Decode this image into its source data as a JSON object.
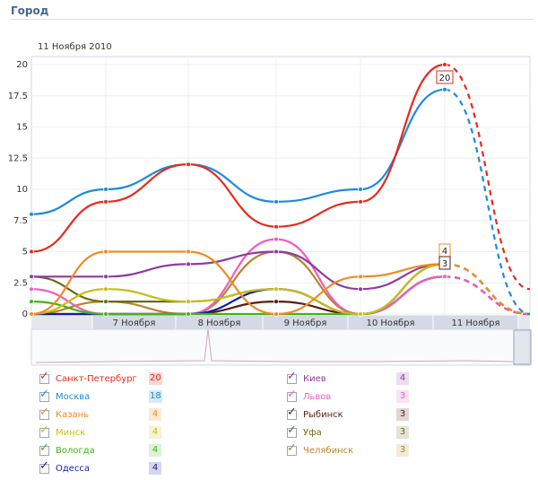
{
  "header": {
    "title": "Город"
  },
  "chart_data": {
    "type": "line",
    "date_label": "11 Ноября 2010",
    "ylim": [
      0,
      20
    ],
    "yticks": [
      "0",
      "2.5",
      "5",
      "7.5",
      "10",
      "12.5",
      "15",
      "17.5",
      "20"
    ],
    "xticks": [
      "7 Ноября",
      "8 Ноября",
      "9 Ноября",
      "10 Ноября",
      "11 Ноября"
    ],
    "series": [
      {
        "name": "Санкт-Петербург",
        "color": "#e8291c",
        "count": "20",
        "values": [
          5,
          9,
          12,
          7,
          9,
          20,
          2
        ]
      },
      {
        "name": "Москва",
        "color": "#1c8ae0",
        "count": "18",
        "values": [
          8,
          10,
          12,
          9,
          10,
          18,
          0
        ]
      },
      {
        "name": "Казань",
        "color": "#f08a24",
        "count": "4",
        "values": [
          0,
          5,
          5,
          0,
          3,
          4,
          0
        ]
      },
      {
        "name": "Минск",
        "color": "#c7bf16",
        "count": "4",
        "values": [
          0,
          2,
          1,
          2,
          0,
          4,
          0
        ]
      },
      {
        "name": "Вологда",
        "color": "#3fb517",
        "count": "4",
        "values": [
          1,
          0,
          0,
          0,
          0,
          4,
          0
        ]
      },
      {
        "name": "Одесса",
        "color": "#101ca1",
        "count": "4",
        "values": [
          0,
          0,
          0,
          2,
          0,
          4,
          0
        ]
      },
      {
        "name": "Киев",
        "color": "#8e3ba0",
        "count": "4",
        "values": [
          3,
          3,
          4,
          5,
          2,
          4,
          0
        ]
      },
      {
        "name": "Львов",
        "color": "#f05cbe",
        "count": "3",
        "values": [
          2,
          0,
          0,
          6,
          0,
          3,
          0
        ]
      },
      {
        "name": "Рыбинск",
        "color": "#5a1e0c",
        "count": "3",
        "values": [
          0,
          0,
          0,
          1,
          0,
          3,
          0
        ]
      },
      {
        "name": "Уфа",
        "color": "#6b6a16",
        "count": "3",
        "values": [
          3,
          1,
          1,
          2,
          0,
          3,
          0
        ]
      },
      {
        "name": "Челябинск",
        "color": "#b7852c",
        "count": "3",
        "values": [
          0,
          1,
          0,
          5,
          0,
          3,
          0
        ]
      }
    ],
    "annotations": [
      {
        "series": "Санкт-Петербург",
        "text": "20",
        "value": 20
      },
      {
        "series": "Казань",
        "text": "4",
        "value": 4
      },
      {
        "series": "Рыбинск",
        "text": "3",
        "value": 3
      }
    ]
  }
}
